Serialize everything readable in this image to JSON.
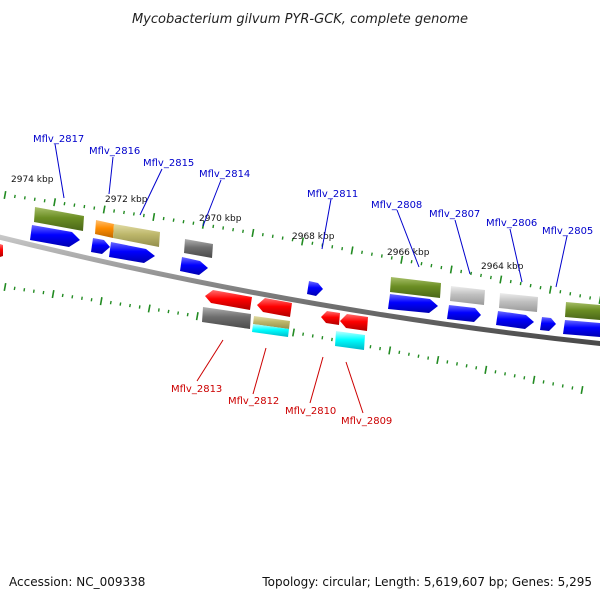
{
  "title": "Mycobacterium gilvum PYR-GCK, complete genome",
  "accession_label": "Accession: NC_009338",
  "topology_summary": "Topology: circular; Length: 5,619,607 bp; Genes: 5,295",
  "colors": {
    "forward_label": "#0000cc",
    "reverse_label": "#cc0000",
    "backbone": "#808080",
    "tick": "#228b22",
    "cds_forward": "#0000ff",
    "cds_reverse": "#ff0000",
    "olive": "#6b8e23",
    "gray": "#808080",
    "light_gray": "#c0c0c0",
    "khaki": "#bdb76b",
    "orange": "#ff8c00",
    "cyan": "#00ffff"
  },
  "tick_labels": [
    "2974 kbp",
    "2972 kbp",
    "2970 kbp",
    "2968 kbp",
    "2966 kbp",
    "2964 kbp"
  ],
  "gene_labels": {
    "forward": [
      "Mflv_2817",
      "Mflv_2816",
      "Mflv_2815",
      "Mflv_2814",
      "Mflv_2811",
      "Mflv_2808",
      "Mflv_2807",
      "Mflv_2806",
      "Mflv_2805"
    ],
    "reverse": [
      "Mflv_2813",
      "Mflv_2812",
      "Mflv_2810",
      "Mflv_2809"
    ]
  }
}
